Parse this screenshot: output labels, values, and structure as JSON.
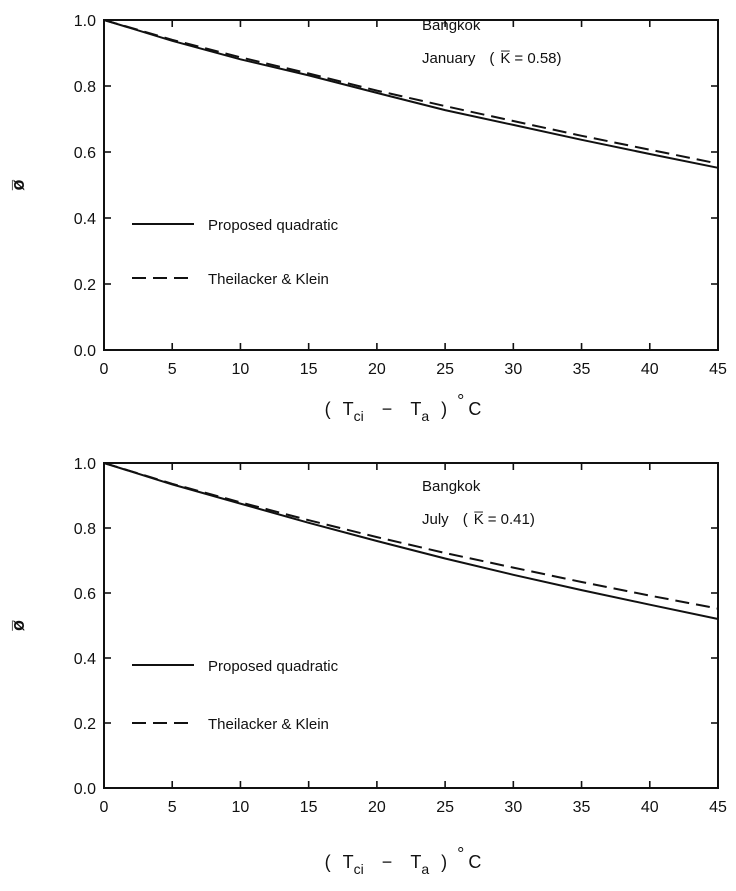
{
  "chart_data": [
    {
      "type": "line",
      "x": [
        0,
        5,
        10,
        15,
        20,
        25,
        30,
        35,
        40,
        45
      ],
      "xlim": [
        0,
        45
      ],
      "ylim": [
        0,
        1
      ],
      "xticks": [
        0,
        5,
        10,
        15,
        20,
        25,
        30,
        35,
        40,
        45
      ],
      "yticks": [
        0.0,
        0.2,
        0.4,
        0.6,
        0.8,
        1.0
      ],
      "xtick_labels": [
        "0",
        "5",
        "10",
        "15",
        "20",
        "25",
        "30",
        "35",
        "40",
        "45"
      ],
      "ytick_labels": [
        "0.0",
        "0.2",
        "0.4",
        "0.6",
        "0.8",
        "1.0"
      ],
      "ylabel": "ø̅",
      "xlabel": {
        "open": "(",
        "t1": "T",
        "s1": "ci",
        "minus": "−",
        "t2": "T",
        "s2": "a",
        "close": ")",
        "deg": "°",
        "unit": "C"
      },
      "annotation": {
        "line1": "Bangkok",
        "line2a": "January",
        "line2b": "(",
        "kbar": "K̅",
        "line2c": "= 0.58)"
      },
      "legend_position": "center-left",
      "grid": false,
      "series": [
        {
          "name": "Proposed  quadratic",
          "style": "solid",
          "values": [
            1.0,
            0.937,
            0.881,
            0.832,
            0.779,
            0.727,
            0.682,
            0.637,
            0.594,
            0.552
          ]
        },
        {
          "name": "Theilacker & Klein",
          "style": "dashed",
          "values": [
            1.0,
            0.94,
            0.887,
            0.838,
            0.786,
            0.739,
            0.694,
            0.649,
            0.607,
            0.565
          ]
        }
      ]
    },
    {
      "type": "line",
      "x": [
        0,
        5,
        10,
        15,
        20,
        25,
        30,
        35,
        40,
        45
      ],
      "xlim": [
        0,
        45
      ],
      "ylim": [
        0,
        1
      ],
      "xticks": [
        0,
        5,
        10,
        15,
        20,
        25,
        30,
        35,
        40,
        45
      ],
      "yticks": [
        0.0,
        0.2,
        0.4,
        0.6,
        0.8,
        1.0
      ],
      "xtick_labels": [
        "0",
        "5",
        "10",
        "15",
        "20",
        "25",
        "30",
        "35",
        "40",
        "45"
      ],
      "ytick_labels": [
        "0.0",
        "0.2",
        "0.4",
        "0.6",
        "0.8",
        "1.0"
      ],
      "ylabel": "ø̅",
      "xlabel": {
        "open": "(",
        "t1": "T",
        "s1": "ci",
        "minus": "−",
        "t2": "T",
        "s2": "a",
        "close": ")",
        "deg": "°",
        "unit": "C"
      },
      "annotation": {
        "line1": "Bangkok",
        "line2a": "July",
        "line2b": "(",
        "kbar": "K̅",
        "line2c": "= 0.41)"
      },
      "legend_position": "center-left",
      "grid": false,
      "series": [
        {
          "name": "Proposed  quadratic",
          "style": "solid",
          "values": [
            1.0,
            0.934,
            0.875,
            0.816,
            0.76,
            0.706,
            0.656,
            0.609,
            0.564,
            0.52
          ]
        },
        {
          "name": "Theilacker & Klein",
          "style": "dashed",
          "values": [
            1.0,
            0.936,
            0.879,
            0.824,
            0.772,
            0.723,
            0.678,
            0.634,
            0.592,
            0.552
          ]
        }
      ]
    }
  ]
}
